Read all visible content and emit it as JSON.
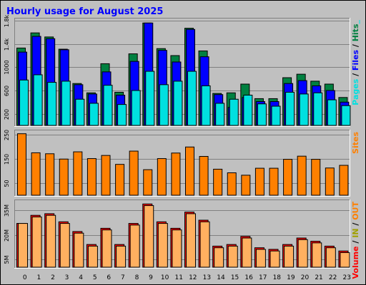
{
  "chart_data": {
    "type": "bar",
    "title": "Hourly usage for August 2025",
    "categories": [
      "0",
      "1",
      "2",
      "3",
      "4",
      "5",
      "6",
      "7",
      "8",
      "9",
      "10",
      "11",
      "12",
      "13",
      "14",
      "15",
      "16",
      "17",
      "18",
      "19",
      "20",
      "21",
      "22",
      "23"
    ],
    "panels": [
      {
        "id": "hits-files-pages",
        "ylim": [
          0,
          1800
        ],
        "yticks": [
          200,
          600,
          1000,
          1400,
          1800
        ],
        "ytick_labels": [
          "200",
          "600",
          "1000",
          "1.4k",
          "1.8k"
        ],
        "legend": [
          {
            "text": "Pages",
            "color": "#00E0E0"
          },
          {
            "text": " / ",
            "color": "#000000"
          },
          {
            "text": "Files",
            "color": "#0000FF"
          },
          {
            "text": " / ",
            "color": "#000000"
          },
          {
            "text": "Hits",
            "color": "#008040"
          },
          {
            "text": "_",
            "color": "#00E0E0"
          }
        ],
        "series": [
          {
            "name": "Hits",
            "color": "#008040",
            "values": [
              1330,
              1590,
              1520,
              1310,
              720,
              560,
              1060,
              570,
              1230,
              1760,
              1320,
              1200,
              1670,
              1280,
              550,
              560,
              710,
              460,
              460,
              820,
              880,
              760,
              710,
              480
            ]
          },
          {
            "name": "Files",
            "color": "#0000FF",
            "values": [
              1260,
              1530,
              1490,
              1300,
              700,
              540,
              920,
              520,
              1100,
              1760,
              1290,
              1090,
              1650,
              1180,
              530,
              310,
              480,
              410,
              410,
              720,
              770,
              680,
              600,
              400
            ]
          },
          {
            "name": "Pages",
            "color": "#00E0E0",
            "values": [
              780,
              870,
              740,
              760,
              450,
              380,
              690,
              360,
              600,
              930,
              700,
              760,
              930,
              680,
              380,
              450,
              520,
              370,
              330,
              570,
              540,
              560,
              440,
              340
            ]
          }
        ]
      },
      {
        "id": "sites",
        "ylim": [
          0,
          260
        ],
        "yticks": [
          50,
          150,
          250
        ],
        "ytick_labels": [
          "50",
          "150",
          "250"
        ],
        "legend": [
          {
            "text": "Sites",
            "color": "#FF8000"
          }
        ],
        "series": [
          {
            "name": "Sites",
            "color": "#FF8000",
            "values": [
              255,
              176,
              172,
              150,
              180,
              152,
              165,
              128,
              183,
              106,
              152,
              175,
              200,
              161,
              108,
              93,
              83,
              112,
              112,
              149,
              162,
              149,
              113,
              124
            ]
          }
        ]
      },
      {
        "id": "volume",
        "ylim": [
          0,
          40
        ],
        "yticks": [
          5,
          20,
          35
        ],
        "ytick_labels": [
          "5M",
          "20M",
          "35M"
        ],
        "legend": [
          {
            "text": "Volume",
            "color": "#FF0000"
          },
          {
            "text": " / ",
            "color": "#000000"
          },
          {
            "text": "IN",
            "color": "#A0A000"
          },
          {
            "text": " / ",
            "color": "#000000"
          },
          {
            "text": "OUT",
            "color": "#FF8000"
          }
        ],
        "series": [
          {
            "name": "Volume",
            "color": "#FF0000",
            "values": [
              27,
              32,
              33,
              28,
              22,
              14,
              24,
              14,
              27,
              39,
              28,
              24,
              34,
              29,
              13,
              14,
              19,
              12,
              11,
              14,
              18,
              16,
              13,
              10
            ]
          },
          {
            "name": "OUT",
            "color": "#FFB060",
            "values": [
              27,
              31,
              32,
              27,
              21,
              13,
              23,
              13,
              26,
              38,
              27,
              23,
              33,
              28,
              12,
              13,
              18,
              11,
              10,
              13,
              17,
              15,
              12,
              9
            ]
          }
        ]
      }
    ]
  }
}
